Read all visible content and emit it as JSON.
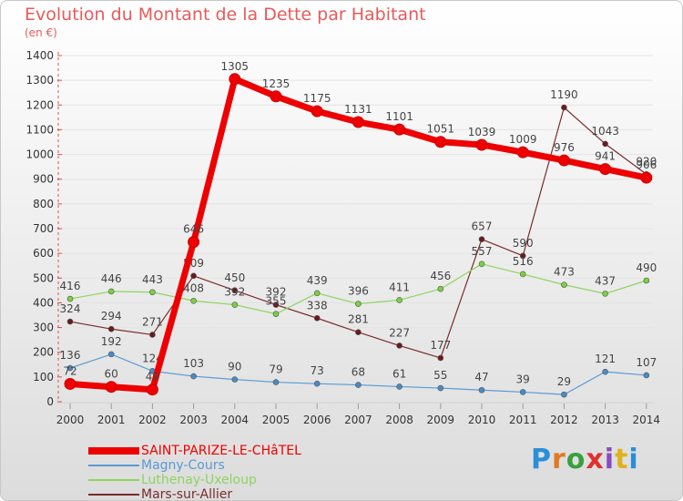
{
  "header": {
    "title": "Evolution du Montant de la Dette par Habitant",
    "subtitle": "(en €)"
  },
  "logo": {
    "text": "Proxiti"
  },
  "chart_data": {
    "type": "line",
    "title": "Evolution du Montant de la Dette par Habitant",
    "ylabel": "(en €)",
    "xlabel": "",
    "ylim": [
      0,
      1400
    ],
    "grid": true,
    "yticks": [
      0,
      100,
      200,
      300,
      400,
      500,
      600,
      700,
      800,
      900,
      1000,
      1100,
      1200,
      1300,
      1400
    ],
    "categories": [
      "2000",
      "2001",
      "2002",
      "2003",
      "2004",
      "2005",
      "2006",
      "2007",
      "2008",
      "2009",
      "2010",
      "2011",
      "2012",
      "2013",
      "2014"
    ],
    "series": [
      {
        "name": "Mars-sur-Allier",
        "color": "#7a2c2c",
        "marker": "#6b1a1a",
        "width": 1.2,
        "radius": 3,
        "values": [
          324,
          294,
          271,
          509,
          450,
          392,
          338,
          281,
          227,
          177,
          657,
          590,
          1190,
          1043,
          920
        ]
      },
      {
        "name": "Luthenay-Uxeloup",
        "color": "#8ed45f",
        "marker": "#7ad040",
        "width": 1.2,
        "radius": 3,
        "values": [
          416,
          446,
          443,
          408,
          392,
          355,
          439,
          396,
          411,
          456,
          557,
          516,
          473,
          437,
          490
        ]
      },
      {
        "name": "Magny-Cours",
        "color": "#5a9ad4",
        "marker": "#4a8ac4",
        "width": 1.2,
        "radius": 3,
        "values": [
          136,
          192,
          124,
          103,
          90,
          79,
          73,
          68,
          61,
          55,
          47,
          39,
          29,
          121,
          107
        ]
      },
      {
        "name": "SAINT-PARIZE-LE-CHâTEL",
        "color": "#ee0000",
        "marker": "#ee0000",
        "width": 7,
        "radius": 6,
        "values": [
          72,
          60,
          49,
          646,
          1305,
          1235,
          1175,
          1131,
          1101,
          1051,
          1039,
          1009,
          976,
          941,
          906
        ]
      }
    ]
  },
  "legend": {
    "items": [
      {
        "label": "SAINT-PARIZE-LE-CHâTEL",
        "color": "#ee0000",
        "thickness": 8
      },
      {
        "label": "Magny-Cours",
        "color": "#5a9ad4",
        "thickness": 2
      },
      {
        "label": "Luthenay-Uxeloup",
        "color": "#8ed45f",
        "thickness": 2
      },
      {
        "label": "Mars-sur-Allier",
        "color": "#7a2c2c",
        "thickness": 2
      }
    ]
  }
}
